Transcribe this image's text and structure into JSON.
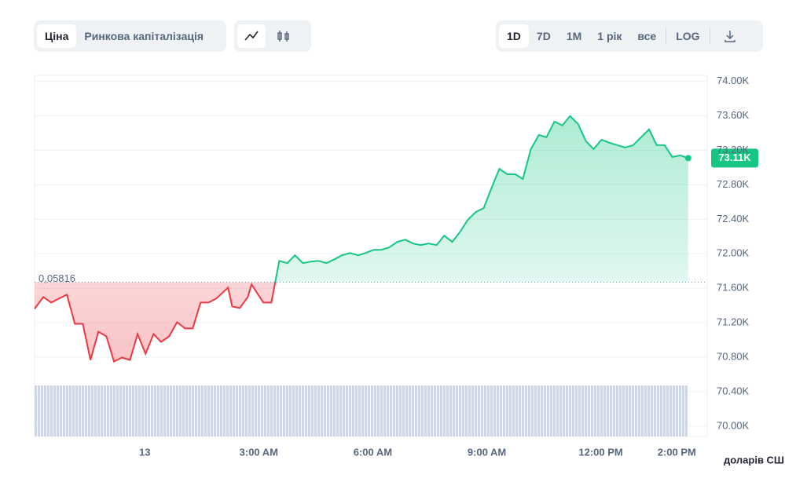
{
  "controls": {
    "modes": [
      "Ціна",
      "Ринкова капіталізація"
    ],
    "ranges": [
      "1D",
      "7D",
      "1M",
      "1 рік",
      "все"
    ],
    "log": "LOG"
  },
  "chart_data": {
    "type": "line",
    "x": [
      -2.9,
      -2.67,
      -2.46,
      -2.26,
      -2.05,
      -1.84,
      -1.63,
      -1.43,
      -1.22,
      -1.01,
      -0.81,
      -0.6,
      -0.39,
      -0.19,
      0.02,
      0.23,
      0.43,
      0.64,
      0.85,
      1.06,
      1.26,
      1.47,
      1.68,
      1.88,
      2.19,
      2.3,
      2.5,
      2.71,
      2.81,
      3.12,
      3.33,
      3.54,
      3.75,
      3.95,
      4.16,
      4.37,
      4.57,
      4.78,
      4.99,
      5.19,
      5.4,
      5.61,
      5.81,
      6.02,
      6.23,
      6.43,
      6.64,
      6.85,
      7.06,
      7.26,
      7.47,
      7.68,
      7.88,
      8.09,
      8.3,
      8.5,
      8.71,
      8.92,
      9.12,
      9.33,
      9.54,
      9.75,
      9.95,
      10.16,
      10.37,
      10.57,
      10.78,
      10.99,
      11.19,
      11.4,
      11.61,
      11.81,
      12.02,
      12.23,
      12.44,
      12.64,
      12.85,
      13.06,
      13.27,
      13.47,
      13.68,
      13.88,
      14.09,
      14.3
    ],
    "values": [
      71361,
      71498,
      71434,
      71480,
      71525,
      71187,
      71187,
      70767,
      71096,
      71041,
      70749,
      70795,
      70767,
      71069,
      70840,
      71069,
      70977,
      71041,
      71206,
      71133,
      71133,
      71434,
      71434,
      71480,
      71607,
      71388,
      71370,
      71498,
      71644,
      71434,
      71434,
      71918,
      71891,
      71982,
      71891,
      71909,
      71918,
      71891,
      71936,
      71982,
      72009,
      71982,
      72009,
      72046,
      72046,
      72073,
      72137,
      72164,
      72119,
      72101,
      72119,
      72101,
      72210,
      72137,
      72256,
      72393,
      72484,
      72530,
      72758,
      72986,
      72922,
      72922,
      72868,
      73215,
      73379,
      73352,
      73534,
      73489,
      73598,
      73507,
      73306,
      73215,
      73324,
      73288,
      73260,
      73233,
      73260,
      73352,
      73443,
      73260,
      73260,
      73123,
      73142,
      73110
    ],
    "xlim": [
      -2.9,
      14.8
    ],
    "ylim": [
      69880,
      74070
    ],
    "xticks": [
      {
        "value": 0,
        "label": "13"
      },
      {
        "value": 3,
        "label": "3:00 AM"
      },
      {
        "value": 6,
        "label": "6:00 AM"
      },
      {
        "value": 9,
        "label": "9:00 AM"
      },
      {
        "value": 12,
        "label": "12:00 PM"
      },
      {
        "value": 14,
        "label": "2:00 PM"
      }
    ],
    "yticks": [
      {
        "value": 74000,
        "label": "74.00K"
      },
      {
        "value": 73600,
        "label": "73.60K"
      },
      {
        "value": 73200,
        "label": "73.20K"
      },
      {
        "value": 72800,
        "label": "72.80K"
      },
      {
        "value": 72400,
        "label": "72.40K"
      },
      {
        "value": 72000,
        "label": "72.00K"
      },
      {
        "value": 71600,
        "label": "71.60K"
      },
      {
        "value": 71200,
        "label": "71.20K"
      },
      {
        "value": 70800,
        "label": "70.80K"
      },
      {
        "value": 70400,
        "label": "70.40K"
      },
      {
        "value": 70000,
        "label": "70.00K"
      }
    ],
    "baseline": {
      "value": 71670,
      "label": "0,05816"
    },
    "last_value_label": "73.11K",
    "unit_label": "доларів СШ",
    "color_up": "#16c784",
    "color_down": "#ea3943",
    "grid": true
  }
}
